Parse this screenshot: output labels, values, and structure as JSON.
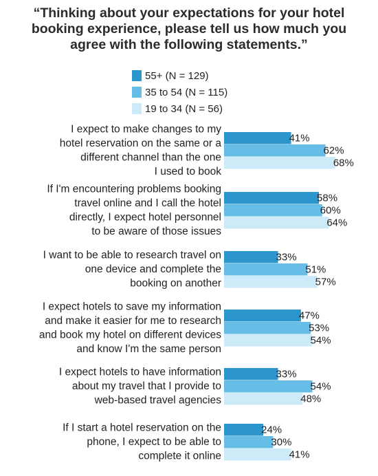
{
  "chart_data": {
    "type": "bar",
    "orientation": "horizontal",
    "title_lines": [
      "“Thinking about your expectations for your hotel",
      "booking experience, please tell us how much you",
      "agree with the following statements.”"
    ],
    "xlabel": "",
    "ylabel": "",
    "xlim": [
      0,
      100
    ],
    "grid": false,
    "legend_position": "top-center",
    "categories": [
      [
        "I expect to make changes to my",
        "hotel reservation on the same or a",
        "different channel than the one",
        "I used to book"
      ],
      [
        "If I'm encountering problems booking",
        "travel online and I call the hotel",
        "directly, I expect hotel personnel",
        "to be aware of those issues"
      ],
      [
        "I want to be able to research travel on",
        "one device and complete the",
        "booking on another"
      ],
      [
        "I expect hotels to save my information",
        "and make it easier for me to research",
        "and book my hotel on different devices",
        "and know I'm the same person"
      ],
      [
        "I expect hotels to have information",
        "about my travel that I provide to",
        "web-based travel agencies"
      ],
      [
        "If I start a hotel reservation on the",
        "phone, I expect to be able to",
        "complete it online"
      ]
    ],
    "series": [
      {
        "name": "55+ (N = 129)",
        "color": "#2b95cc",
        "values": [
          41,
          58,
          33,
          47,
          33,
          24
        ]
      },
      {
        "name": "35 to 54 (N = 115)",
        "color": "#66bde6",
        "values": [
          62,
          60,
          51,
          53,
          54,
          30
        ]
      },
      {
        "name": "19 to 34 (N = 56)",
        "color": "#cceaf7",
        "values": [
          68,
          64,
          57,
          54,
          48,
          41
        ]
      }
    ],
    "value_suffix": "%"
  }
}
